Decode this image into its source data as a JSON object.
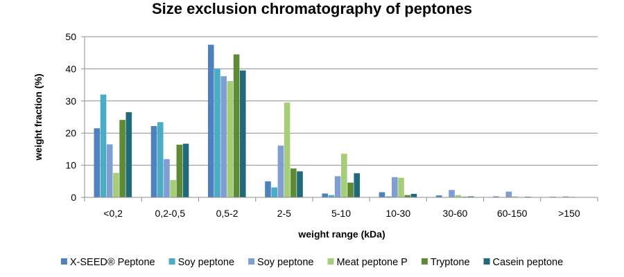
{
  "chart_data": {
    "type": "bar",
    "title": "Size exclusion chromatography of peptones",
    "xlabel": "weight range (kDa)",
    "ylabel": "weight fraction (%)",
    "ylim": [
      0,
      50
    ],
    "yticks": [
      0,
      10,
      20,
      30,
      40,
      50
    ],
    "grid": true,
    "legend_position": "bottom",
    "categories": [
      "<0,2",
      "0,2-0,5",
      "0,5-2",
      "2-5",
      "5-10",
      "10-30",
      "30-60",
      "60-150",
      ">150"
    ],
    "series": [
      {
        "name": "X-SEED® Peptone",
        "color": "#4F81BD",
        "values": [
          21.5,
          22.2,
          47.5,
          5.0,
          1.2,
          1.6,
          0.6,
          0.3,
          0.2
        ]
      },
      {
        "name": "Soy peptone",
        "color": "#4BACC6",
        "values": [
          32.0,
          23.4,
          40.1,
          3.1,
          0.7,
          0.3,
          0.1,
          0.1,
          0.1
        ]
      },
      {
        "name": "Soy peptone",
        "color": "#7F9FD3",
        "values": [
          16.5,
          11.9,
          37.7,
          16.1,
          6.6,
          6.3,
          2.3,
          1.8,
          0.3
        ]
      },
      {
        "name": "Meat peptone P",
        "color": "#A6CE7A",
        "values": [
          7.6,
          5.4,
          36.2,
          29.5,
          13.6,
          6.1,
          0.7,
          0.3,
          0.2
        ]
      },
      {
        "name": "Tryptone",
        "color": "#5E8B35",
        "values": [
          24.1,
          16.4,
          44.5,
          9.0,
          4.6,
          0.7,
          0.2,
          0.1,
          0.1
        ]
      },
      {
        "name": "Casein peptone",
        "color": "#216A7A",
        "values": [
          26.5,
          16.7,
          39.5,
          8.1,
          7.5,
          1.1,
          0.3,
          0.2,
          0.1
        ]
      }
    ]
  }
}
